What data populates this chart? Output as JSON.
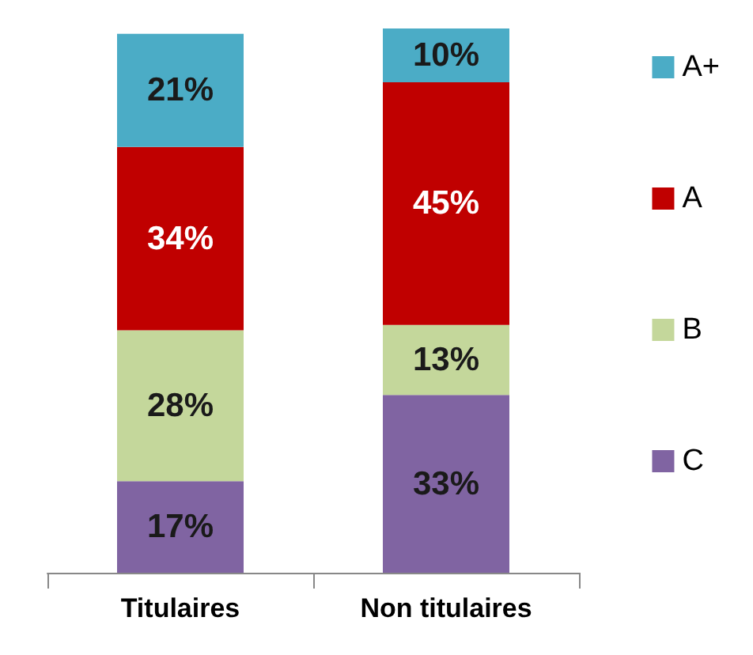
{
  "chart_data": {
    "type": "bar",
    "stacked": true,
    "categories": [
      "Titulaires",
      "Non titulaires"
    ],
    "legend": "right",
    "series": [
      {
        "name": "C",
        "color": "#8064a2",
        "values": [
          17,
          33
        ],
        "value_labels": [
          "17%",
          "33%"
        ]
      },
      {
        "name": "B",
        "color": "#c4d79b",
        "values": [
          28,
          13
        ],
        "value_labels": [
          "28%",
          "13%"
        ]
      },
      {
        "name": "A",
        "color": "#c00000",
        "values": [
          34,
          45
        ],
        "value_labels": [
          "34%",
          "45%"
        ]
      },
      {
        "name": "A+",
        "color": "#4bacc6",
        "values": [
          21,
          10
        ],
        "value_labels": [
          "21%",
          "10%"
        ]
      }
    ]
  }
}
